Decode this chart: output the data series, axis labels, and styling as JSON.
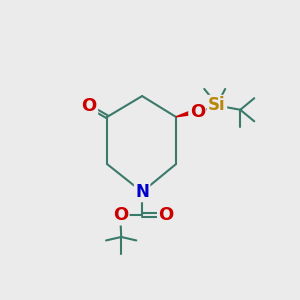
{
  "bg_color": "#ebebeb",
  "bond_color": "#3a7a6a",
  "N_color": "#0000cc",
  "O_color": "#cc0000",
  "Si_color": "#b8860b",
  "line_width": 1.5,
  "font_size": 11,
  "figsize": [
    3.0,
    3.0
  ],
  "dpi": 100,
  "xlim": [
    0,
    10
  ],
  "ylim": [
    0,
    10
  ]
}
